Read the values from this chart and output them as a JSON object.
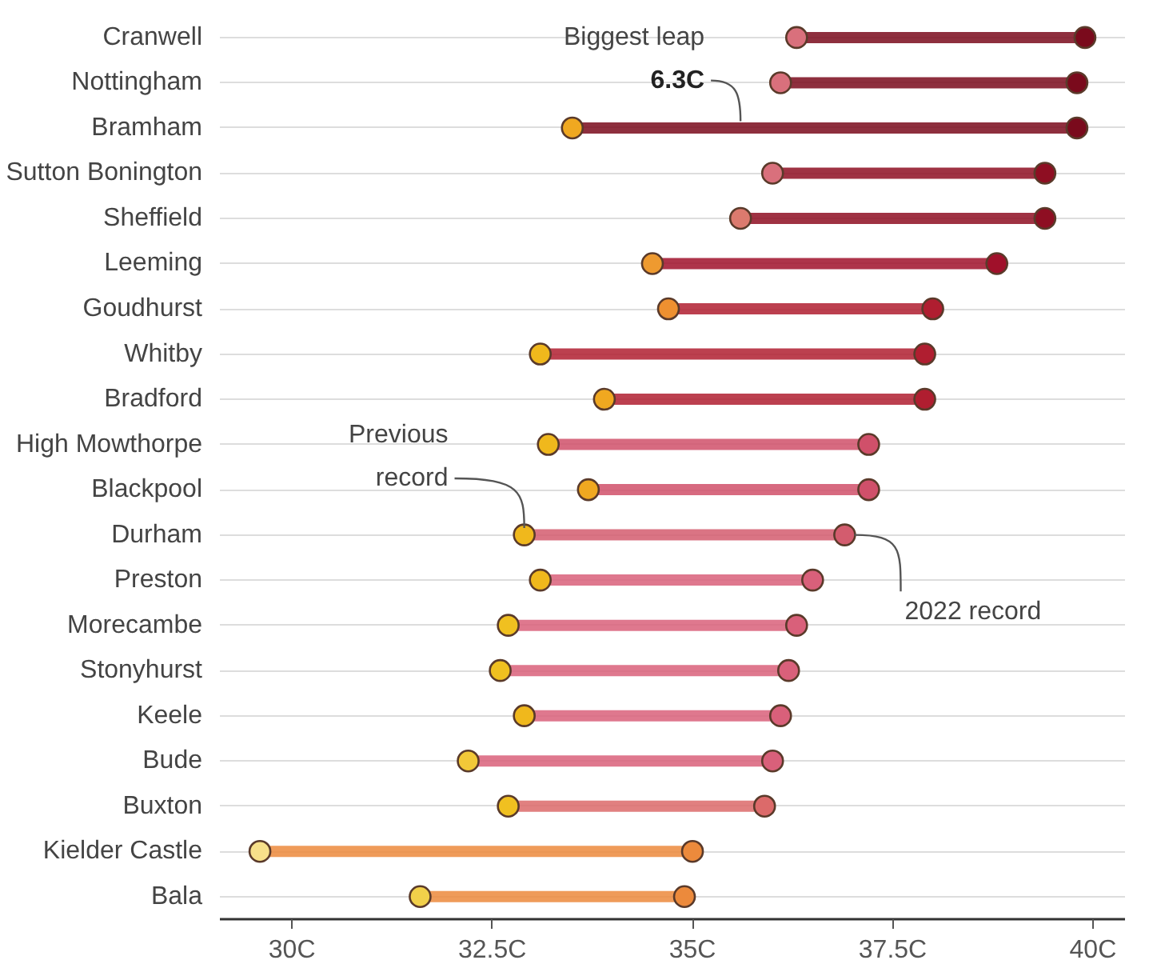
{
  "chart_data": {
    "type": "scatter",
    "orientation": "horizontal",
    "marker": "circle",
    "grid": "y",
    "categories": [
      "Cranwell",
      "Nottingham",
      "Bramham",
      "Sutton Bonington",
      "Sheffield",
      "Leeming",
      "Goudhurst",
      "Whitby",
      "Bradford",
      "High Mowthorpe",
      "Blackpool",
      "Durham",
      "Preston",
      "Morecambe",
      "Stonyhurst",
      "Keele",
      "Bude",
      "Buxton",
      "Kielder Castle",
      "Bala"
    ],
    "series": [
      {
        "values": [
          36.3,
          36.1,
          33.5,
          36.0,
          35.6,
          34.5,
          34.7,
          33.1,
          33.9,
          33.2,
          33.7,
          32.9,
          33.1,
          32.7,
          32.6,
          32.9,
          32.2,
          32.7,
          29.6,
          31.6
        ],
        "colors": [
          "#d9707c",
          "#d9707c",
          "#f0a820",
          "#d9707c",
          "#dc7a6e",
          "#ee9a30",
          "#ee9030",
          "#f0b81c",
          "#f0a820",
          "#f0b81c",
          "#f0a820",
          "#f0b81c",
          "#f0b81c",
          "#f0c020",
          "#f0c020",
          "#f0b81c",
          "#f2c838",
          "#f0c020",
          "#f7e08a",
          "#f2d04a"
        ]
      },
      {
        "values": [
          39.9,
          39.8,
          39.8,
          39.4,
          39.4,
          38.8,
          38.0,
          37.9,
          37.9,
          37.2,
          37.2,
          36.9,
          36.5,
          36.3,
          36.2,
          36.1,
          36.0,
          35.9,
          35.0,
          34.9
        ],
        "colors": [
          "#7a0a1c",
          "#7a0a1c",
          "#7a0a1c",
          "#8e0e22",
          "#8e0e22",
          "#a0102a",
          "#b01e30",
          "#b01e30",
          "#b01e30",
          "#d0506a",
          "#d0506a",
          "#d35c6e",
          "#d9607a",
          "#d9607a",
          "#d9607a",
          "#d9607a",
          "#d9607a",
          "#dc6a6a",
          "#ec8a3c",
          "#ec8a3c"
        ]
      }
    ],
    "xlim": [
      29.1,
      40.4
    ],
    "xticks": [
      {
        "value": 30,
        "label": "30C"
      },
      {
        "value": 32.5,
        "label": "32.5C"
      },
      {
        "value": 35,
        "label": "35C"
      },
      {
        "value": 37.5,
        "label": "37.5C"
      },
      {
        "value": 40,
        "label": "40C"
      }
    ],
    "annotations": [
      "Biggest leap\n6.3C",
      {
        "text": "Previous\nrecord",
        "x": 32.9,
        "y": "Durham"
      },
      {
        "text": "2022 record",
        "x": 36.9,
        "y": "Durham"
      }
    ]
  }
}
